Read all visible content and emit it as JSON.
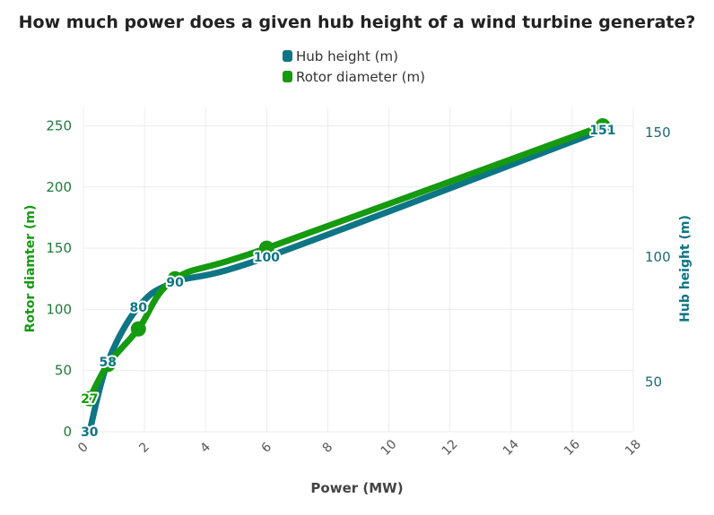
{
  "chart_data": {
    "type": "line",
    "title": "How much power does a given hub height of a wind turbine generate?",
    "xlabel": "Power (MW)",
    "ylabel_left": "Rotor diamter (m)",
    "ylabel_right": "Hub height (m)",
    "xlim": [
      0,
      18
    ],
    "ylim_left": [
      0,
      265
    ],
    "ylim_right": [
      30,
      160
    ],
    "x_ticks": [
      0,
      2,
      4,
      6,
      8,
      10,
      12,
      14,
      16,
      18
    ],
    "y_left_ticks": [
      0,
      50,
      100,
      150,
      200,
      250
    ],
    "y_right_ticks": [
      50,
      100,
      150
    ],
    "grid": true,
    "legend_position": "top-center",
    "series": [
      {
        "name": "Hub height (m)",
        "axis": "right",
        "color": "#0e7585",
        "x": [
          0.2,
          0.8,
          1.8,
          3.0,
          6.0,
          17.0
        ],
        "y": [
          30,
          58,
          80,
          90,
          100,
          151
        ],
        "labels": [
          "30",
          "58",
          "80",
          "90",
          "100",
          "151"
        ]
      },
      {
        "name": "Rotor diameter (m)",
        "axis": "left",
        "color": "#159a10",
        "x": [
          0.2,
          0.8,
          1.8,
          3.0,
          6.0,
          17.0
        ],
        "y": [
          27,
          55,
          84,
          125,
          150,
          250
        ],
        "labels": [
          "27",
          "",
          "",
          "",
          "",
          ""
        ]
      }
    ]
  }
}
